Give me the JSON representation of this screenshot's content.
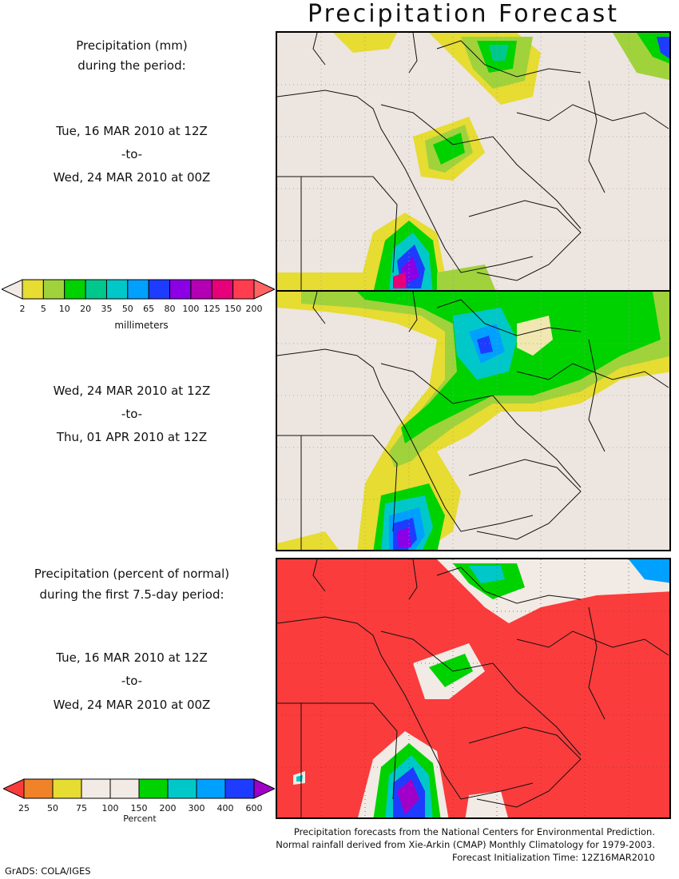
{
  "title": "Precipitation Forecast",
  "panels": [
    {
      "heading": [
        "Precipitation (mm)",
        "during the period:"
      ],
      "start": "Tue, 16 MAR 2010 at 12Z",
      "sep": "-to-",
      "end": "Wed, 24 MAR 2010 at 00Z"
    },
    {
      "start": "Wed, 24 MAR 2010 at 12Z",
      "sep": "-to-",
      "end": "Thu, 01 APR 2010 at 12Z"
    },
    {
      "heading": [
        "Precipitation (percent of normal)",
        "during the first 7.5-day period:"
      ],
      "start": "Tue, 16 MAR 2010 at 12Z",
      "sep": "-to-",
      "end": "Wed, 24 MAR 2010 at 00Z"
    }
  ],
  "mm_colorbar": {
    "unit": "millimeters",
    "labels": [
      "2",
      "5",
      "10",
      "20",
      "35",
      "50",
      "65",
      "80",
      "100",
      "125",
      "150",
      "200"
    ],
    "colors": [
      "#f2eae4",
      "#e6dc32",
      "#a0d23c",
      "#00d200",
      "#00c88c",
      "#00c8c8",
      "#00a0ff",
      "#1e3cff",
      "#8c00e6",
      "#b400b4",
      "#e6007a",
      "#ff3c50",
      "#ff6464"
    ]
  },
  "pct_colorbar": {
    "unit": "Percent",
    "labels": [
      "25",
      "50",
      "75",
      "100",
      "150",
      "200",
      "300",
      "400",
      "600"
    ],
    "colors": [
      "#fa3c3c",
      "#f08228",
      "#e6dc32",
      "#f2eae4",
      "#f2eae4",
      "#00d200",
      "#00c8c8",
      "#00a0ff",
      "#1e3cff",
      "#a000c8"
    ]
  },
  "credits": [
    "Precipitation forecasts from the National Centers for Environmental Prediction.",
    "Normal rainfall derived from Xie-Arkin (CMAP) Monthly Climatology for 1979-2003.",
    "Forecast Initialization Time: 12Z16MAR2010"
  ],
  "footer": "GrADS: COLA/IGES"
}
